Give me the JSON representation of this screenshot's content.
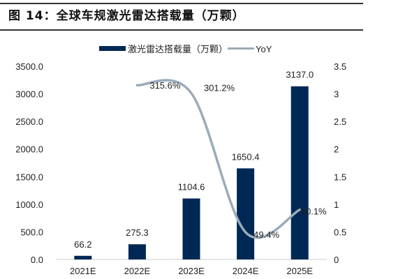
{
  "title": "图 14：全球车规激光雷达搭载量（万颗）",
  "chart_data": {
    "type": "bar+line",
    "title": "图 14：全球车规激光雷达搭载量（万颗）",
    "categories": [
      "2021E",
      "2022E",
      "2023E",
      "2024E",
      "2025E"
    ],
    "series": [
      {
        "name": "激光雷达搭载量（万颗）",
        "type": "bar",
        "axis": "left",
        "values": [
          66.2,
          275.3,
          1104.6,
          1650.4,
          3137.0
        ],
        "labels": [
          "66.2",
          "275.3",
          "1104.6",
          "1650.4",
          "3137.0"
        ],
        "color": "#002855"
      },
      {
        "name": "YoY",
        "type": "line",
        "axis": "right",
        "smooth": true,
        "values": [
          null,
          3.156,
          3.012,
          0.494,
          0.901
        ],
        "labels": [
          "",
          "315.6%",
          "301.2%",
          "49.4%",
          "90.1%"
        ],
        "color": "#9aabb9"
      }
    ],
    "yleft": {
      "ylim": [
        0,
        3500
      ],
      "ticks": [
        "0.0",
        "500.0",
        "1000.0",
        "1500.0",
        "2000.0",
        "2500.0",
        "3000.0",
        "3500.0"
      ]
    },
    "yright": {
      "ylim": [
        0,
        3.5
      ],
      "ticks": [
        "0",
        "0.5",
        "1",
        "1.5",
        "2",
        "2.5",
        "3",
        "3.5"
      ]
    },
    "grid": false,
    "legend": "top"
  }
}
